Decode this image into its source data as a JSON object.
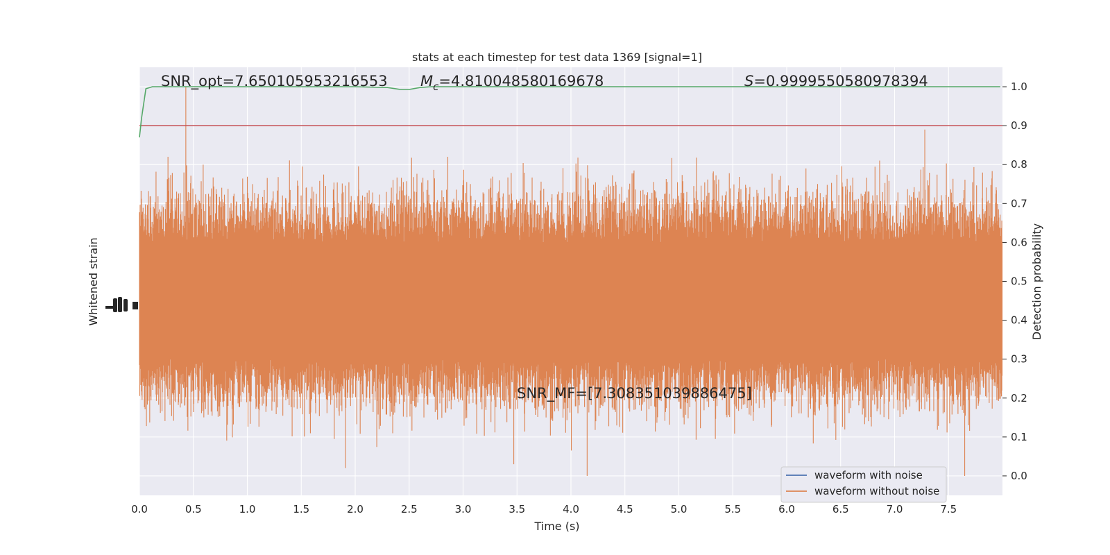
{
  "chart_data": {
    "type": "line",
    "title": "stats at each timestep for test data 1369 [signal=1]",
    "xlabel": "Time (s)",
    "ylabel_left": "Whitened strain",
    "ylabel_right": "Detection probability",
    "xlim": [
      0.0,
      8.0
    ],
    "ylim_right": [
      -0.05,
      1.05
    ],
    "x_ticks": [
      "0.0",
      "0.5",
      "1.0",
      "1.5",
      "2.0",
      "2.5",
      "3.0",
      "3.5",
      "4.0",
      "4.5",
      "5.0",
      "5.5",
      "6.0",
      "6.5",
      "7.0",
      "7.5"
    ],
    "x_tick_values": [
      0.0,
      0.5,
      1.0,
      1.5,
      2.0,
      2.5,
      3.0,
      3.5,
      4.0,
      4.5,
      5.0,
      5.5,
      6.0,
      6.5,
      7.0,
      7.5
    ],
    "y_ticks_right": [
      "0.0",
      "0.1",
      "0.2",
      "0.3",
      "0.4",
      "0.5",
      "0.6",
      "0.7",
      "0.8",
      "0.9",
      "1.0"
    ],
    "y_tick_values_right": [
      0.0,
      0.1,
      0.2,
      0.3,
      0.4,
      0.5,
      0.6,
      0.7,
      0.8,
      0.9,
      1.0
    ],
    "grid": true,
    "legend": {
      "placement": "lower-right",
      "entries": [
        {
          "label": "waveform with noise",
          "color": "#4c72b0"
        },
        {
          "label": "waveform without noise",
          "color": "#dd8452"
        }
      ]
    },
    "annotations": {
      "snr_opt": "SNR_opt=7.650105953216553",
      "mc_symbol": "M",
      "mc_sub": "c",
      "mc_value": "=4.810048580169678",
      "s_symbol": "S",
      "s_value": "=0.9999550580978394",
      "snr_mf": "SNR_MF=[7.308351039886475]"
    },
    "threshold": {
      "value": 0.9,
      "color": "#c44e52"
    },
    "detection_probability": {
      "color": "#55a868",
      "points": [
        [
          0.0,
          0.87
        ],
        [
          0.02,
          0.92
        ],
        [
          0.06,
          0.995
        ],
        [
          0.12,
          1.0
        ],
        [
          2.0,
          1.0
        ],
        [
          2.3,
          0.998
        ],
        [
          2.42,
          0.993
        ],
        [
          2.5,
          0.993
        ],
        [
          2.6,
          0.998
        ],
        [
          2.7,
          1.0
        ],
        [
          7.98,
          1.0
        ]
      ]
    },
    "waveform_without_noise": {
      "color": "#dd8452",
      "description_range_right_axis": [
        0.0,
        1.0
      ],
      "spike_peaks": [
        {
          "x": 0.43,
          "y": 1.0
        },
        {
          "x": 7.28,
          "y": 0.89
        },
        {
          "x": 4.15,
          "y": 0.0
        },
        {
          "x": 7.65,
          "y": 0.0
        },
        {
          "x": 1.91,
          "y": 0.02
        },
        {
          "x": 3.47,
          "y": 0.03
        }
      ]
    },
    "colors": {
      "plot_background": "#eaeaf2",
      "grid": "#ffffff",
      "text": "#262626"
    }
  }
}
